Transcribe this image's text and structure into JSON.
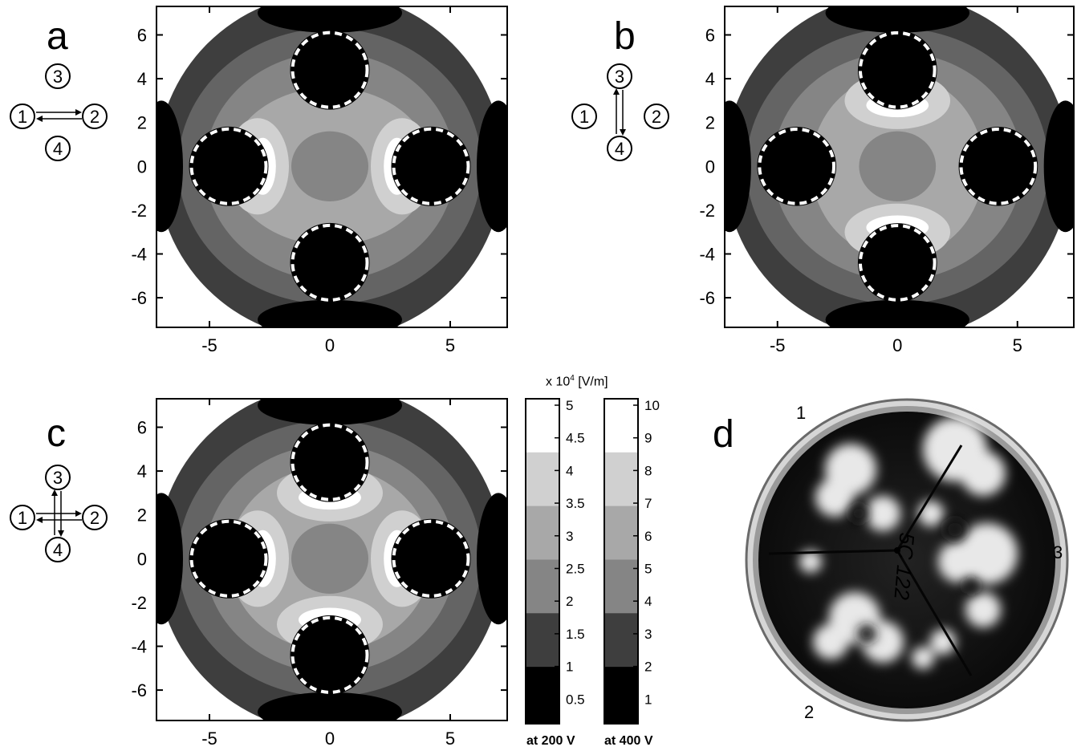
{
  "panels": [
    {
      "label": "a",
      "xticks": [
        "-5",
        "0",
        "5"
      ],
      "yticks": [
        "6",
        "4",
        "2",
        "0",
        "-2",
        "-4",
        "-6"
      ],
      "pair": "horizontal"
    },
    {
      "label": "b",
      "xticks": [
        "-5",
        "0",
        "5"
      ],
      "yticks": [
        "6",
        "4",
        "2",
        "0",
        "-2",
        "-4",
        "-6"
      ],
      "pair": "vertical"
    },
    {
      "label": "c",
      "xticks": [
        "-5",
        "0",
        "5"
      ],
      "yticks": [
        "6",
        "4",
        "2",
        "0",
        "-2",
        "-4",
        "-6"
      ],
      "pair": "both"
    }
  ],
  "electrodes": [
    "1",
    "2",
    "3",
    "4"
  ],
  "colorbar": {
    "title": "x 10",
    "title_exp": "4",
    "title_unit": " [V/m]",
    "left_ticks": [
      "5",
      "4.5",
      "4",
      "3.5",
      "3",
      "2.5",
      "2",
      "1.5",
      "1",
      "0.5"
    ],
    "right_ticks": [
      "10",
      "9",
      "8",
      "7",
      "6",
      "5",
      "4",
      "3",
      "2",
      "1"
    ],
    "left_caption": "at 200 V",
    "right_caption": "at 400 V",
    "levels": [
      "#ffffff",
      "#d0d0d0",
      "#a8a8a8",
      "#858585",
      "#646464",
      "#3e3e3e",
      "#000000"
    ]
  },
  "photo": {
    "label": "d",
    "labels": [
      "1",
      "2",
      "3"
    ],
    "handwriting": "5C 122"
  },
  "chart_data": [
    {
      "type": "heatmap",
      "panel": "a",
      "xlim": [
        -7.2,
        7.2
      ],
      "ylim": [
        -7.3,
        7.3
      ],
      "xticks": [
        -5,
        0,
        5
      ],
      "yticks": [
        -6,
        -4,
        -2,
        0,
        2,
        4,
        6
      ],
      "active_pair": "1-2"
    },
    {
      "type": "heatmap",
      "panel": "b",
      "xlim": [
        -7.2,
        7.2
      ],
      "ylim": [
        -7.3,
        7.3
      ],
      "xticks": [
        -5,
        0,
        5
      ],
      "yticks": [
        -6,
        -4,
        -2,
        0,
        2,
        4,
        6
      ],
      "active_pair": "3-4"
    },
    {
      "type": "heatmap",
      "panel": "c",
      "xlim": [
        -7.2,
        7.2
      ],
      "ylim": [
        -6.2,
        7.3
      ],
      "xticks": [
        -5,
        0,
        5
      ],
      "yticks": [
        -6,
        -4,
        -2,
        0,
        2,
        4,
        6
      ],
      "active_pair": "1-2,3-4"
    }
  ]
}
